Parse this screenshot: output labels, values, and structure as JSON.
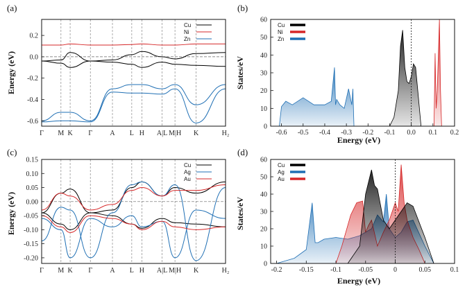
{
  "colors": {
    "cu": "#000000",
    "red": "#d62728",
    "blue": "#1f6fb4"
  },
  "chart_data": [
    {
      "type": "line",
      "panel": "(a)",
      "ylabel": "Energy (eV)",
      "ylim": [
        -0.65,
        0.35
      ],
      "yticks": [
        0.2,
        0.0,
        -0.2,
        -0.4,
        -0.6
      ],
      "ytick_labels": [
        "0.2",
        "0.0",
        "-0.2",
        "-0.4",
        "-0.6"
      ],
      "kpoints": [
        "Γ",
        "M",
        "K",
        "Γ",
        "A",
        "L",
        "H",
        "A|L",
        "M|H",
        "K",
        "H₂"
      ],
      "kpos": [
        0,
        0.105,
        0.155,
        0.265,
        0.385,
        0.49,
        0.545,
        0.655,
        0.725,
        0.84,
        1.0
      ],
      "legend": [
        "Cu",
        "Ni",
        "Zn"
      ],
      "series": [
        {
          "name": "Cu",
          "color": "cu",
          "x": [
            0,
            0.105,
            0.155,
            0.265,
            0.385,
            0.49,
            0.545,
            0.655,
            0.725,
            0.84,
            1.0
          ],
          "values": [
            -0.04,
            -0.03,
            0.04,
            -0.04,
            -0.03,
            0.02,
            0.05,
            0.0,
            -0.02,
            0.03,
            0.04
          ]
        },
        {
          "name": "Cu",
          "color": "cu",
          "x": [
            0,
            0.105,
            0.155,
            0.265,
            0.385,
            0.49,
            0.545,
            0.655,
            0.725,
            0.84,
            1.0
          ],
          "values": [
            -0.04,
            -0.06,
            -0.1,
            -0.04,
            -0.05,
            -0.07,
            -0.1,
            -0.05,
            -0.07,
            -0.08,
            -0.09
          ]
        },
        {
          "name": "Ni",
          "color": "red",
          "x": [
            0,
            0.105,
            0.155,
            0.265,
            0.385,
            0.49,
            0.545,
            0.655,
            0.725,
            0.84,
            1.0
          ],
          "values": [
            0.11,
            0.11,
            0.12,
            0.11,
            0.11,
            0.115,
            0.12,
            0.11,
            0.11,
            0.12,
            0.12
          ]
        },
        {
          "name": "Zn",
          "color": "blue",
          "x": [
            0,
            0.105,
            0.155,
            0.265,
            0.385,
            0.49,
            0.545,
            0.655,
            0.725,
            0.84,
            1.0
          ],
          "values": [
            -0.6,
            -0.52,
            -0.52,
            -0.6,
            -0.3,
            -0.26,
            -0.26,
            -0.3,
            -0.26,
            -0.45,
            -0.26
          ]
        },
        {
          "name": "Zn",
          "color": "blue",
          "x": [
            0,
            0.105,
            0.155,
            0.265,
            0.385,
            0.49,
            0.545,
            0.655,
            0.725,
            0.84,
            1.0
          ],
          "values": [
            -0.61,
            -0.6,
            -0.6,
            -0.61,
            -0.33,
            -0.34,
            -0.34,
            -0.35,
            -0.3,
            -0.62,
            -0.3
          ]
        }
      ]
    },
    {
      "type": "area",
      "panel": "(b)",
      "xlabel": "Energy (eV)",
      "ylabel": "States/eV",
      "xlim": [
        -0.65,
        0.2
      ],
      "ylim": [
        0,
        60
      ],
      "xticks": [
        -0.6,
        -0.5,
        -0.4,
        -0.3,
        -0.2,
        -0.1,
        0.0,
        0.1,
        0.2
      ],
      "xtick_labels": [
        "-0.6",
        "-0.5",
        "-0.4",
        "-0.3",
        "-0.2",
        "-0.1",
        "0.0",
        "0.1",
        "0.2"
      ],
      "yticks": [
        0,
        10,
        20,
        30,
        40,
        50,
        60
      ],
      "ytick_labels": [
        "0",
        "10",
        "20",
        "30",
        "40",
        "50",
        "60"
      ],
      "legend": [
        "Cu",
        "Ni",
        "Zn"
      ],
      "series": [
        {
          "name": "Zn",
          "color": "blue",
          "x": [
            -0.61,
            -0.6,
            -0.58,
            -0.55,
            -0.5,
            -0.45,
            -0.4,
            -0.37,
            -0.355,
            -0.35,
            -0.345,
            -0.33,
            -0.31,
            -0.29,
            -0.275,
            -0.27,
            -0.265
          ],
          "values": [
            0,
            11,
            14,
            12,
            16,
            12,
            12,
            14,
            33,
            12,
            15,
            12,
            10,
            21,
            12,
            21,
            0
          ]
        },
        {
          "name": "Cu",
          "color": "cu",
          "x": [
            -0.1,
            -0.08,
            -0.06,
            -0.05,
            -0.04,
            -0.03,
            -0.02,
            -0.01,
            0.0,
            0.01,
            0.02,
            0.03,
            0.045
          ],
          "values": [
            0,
            5,
            20,
            45,
            54,
            33,
            25,
            24,
            28,
            35,
            33,
            20,
            0
          ]
        },
        {
          "name": "Ni",
          "color": "red",
          "x": [
            0.105,
            0.11,
            0.115,
            0.12,
            0.125,
            0.13,
            0.135,
            0.14
          ],
          "values": [
            0,
            41,
            10,
            20,
            40,
            60,
            20,
            0
          ]
        }
      ]
    },
    {
      "type": "line",
      "panel": "(c)",
      "ylabel": "Energy (eV)",
      "ylim": [
        -0.22,
        0.15
      ],
      "yticks": [
        0.15,
        0.1,
        0.05,
        0.0,
        -0.05,
        -0.1,
        -0.15,
        -0.2
      ],
      "ytick_labels": [
        "0.15",
        "0.10",
        "0.05",
        "0.00",
        "-0.05",
        "-0.10",
        "-0.15",
        "-0.20"
      ],
      "kpoints": [
        "Γ",
        "M",
        "K",
        "Γ",
        "A",
        "L",
        "H",
        "A|L",
        "M|H",
        "K",
        "H₂"
      ],
      "kpos": [
        0,
        0.105,
        0.155,
        0.265,
        0.385,
        0.49,
        0.545,
        0.655,
        0.725,
        0.84,
        1.0
      ],
      "legend": [
        "Cu",
        "Ag",
        "Au"
      ],
      "series": [
        {
          "name": "Cu",
          "color": "cu",
          "x": [
            0,
            0.105,
            0.155,
            0.265,
            0.385,
            0.49,
            0.545,
            0.655,
            0.725,
            0.84,
            1.0
          ],
          "values": [
            -0.04,
            0.03,
            0.045,
            -0.04,
            -0.03,
            0.05,
            0.07,
            0.02,
            0.05,
            0.03,
            0.07
          ]
        },
        {
          "name": "Cu",
          "color": "cu",
          "x": [
            0,
            0.105,
            0.155,
            0.265,
            0.385,
            0.49,
            0.545,
            0.655,
            0.725,
            0.84,
            1.0
          ],
          "values": [
            -0.04,
            -0.08,
            -0.1,
            -0.04,
            -0.05,
            -0.08,
            -0.095,
            -0.06,
            -0.075,
            -0.08,
            -0.09
          ]
        },
        {
          "name": "Ag",
          "color": "blue",
          "x": [
            0,
            0.105,
            0.155,
            0.265,
            0.385,
            0.49,
            0.545,
            0.655,
            0.725,
            0.84,
            1.0
          ],
          "values": [
            -0.14,
            -0.02,
            -0.03,
            -0.2,
            -0.04,
            0.06,
            0.07,
            0.02,
            0.06,
            -0.21,
            0.05
          ]
        },
        {
          "name": "Ag",
          "color": "blue",
          "x": [
            0,
            0.105,
            0.155,
            0.265,
            0.385,
            0.49,
            0.545,
            0.655,
            0.725,
            0.84,
            1.0
          ],
          "values": [
            -0.06,
            -0.1,
            -0.2,
            -0.06,
            -0.09,
            -0.05,
            -0.09,
            -0.07,
            -0.2,
            -0.03,
            -0.06
          ]
        },
        {
          "name": "Au",
          "color": "red",
          "x": [
            0,
            0.105,
            0.155,
            0.265,
            0.385,
            0.49,
            0.545,
            0.655,
            0.725,
            0.84,
            1.0
          ],
          "values": [
            -0.03,
            0.03,
            0.02,
            -0.03,
            -0.01,
            0.04,
            0.05,
            0.02,
            0.04,
            0.04,
            0.06
          ]
        },
        {
          "name": "Au",
          "color": "red",
          "x": [
            0,
            0.105,
            0.155,
            0.265,
            0.385,
            0.49,
            0.545,
            0.655,
            0.725,
            0.84,
            1.0
          ],
          "values": [
            -0.05,
            -0.09,
            -0.11,
            -0.05,
            -0.06,
            -0.08,
            -0.1,
            -0.07,
            -0.09,
            -0.1,
            -0.09
          ]
        }
      ]
    },
    {
      "type": "area",
      "panel": "(d)",
      "xlabel": "Energy (eV)",
      "ylabel": "States/eV",
      "xlim": [
        -0.21,
        0.1
      ],
      "ylim": [
        0,
        60
      ],
      "xticks": [
        -0.2,
        -0.15,
        -0.1,
        -0.05,
        0.0,
        0.05,
        0.1
      ],
      "xtick_labels": [
        "-0.2",
        "-0.15",
        "-0.1",
        "-0.05",
        "0",
        "0.05",
        "0.1"
      ],
      "yticks": [
        0,
        10,
        20,
        30,
        40,
        50,
        60
      ],
      "ytick_labels": [
        "0",
        "10",
        "20",
        "30",
        "40",
        "50",
        "60"
      ],
      "legend": [
        "Cu",
        "Ag",
        "Au"
      ],
      "series": [
        {
          "name": "Ag",
          "color": "blue",
          "x": [
            -0.2,
            -0.17,
            -0.15,
            -0.14,
            -0.135,
            -0.13,
            -0.12,
            -0.1,
            -0.08,
            -0.06,
            -0.04,
            -0.03,
            -0.02,
            -0.015,
            -0.01,
            0.0,
            0.01,
            0.02,
            0.03,
            0.05,
            0.065
          ],
          "values": [
            0,
            3,
            8,
            35,
            12,
            12,
            14,
            15,
            14,
            16,
            20,
            28,
            24,
            40,
            20,
            15,
            18,
            24,
            25,
            10,
            0
          ]
        },
        {
          "name": "Au",
          "color": "red",
          "x": [
            -0.1,
            -0.09,
            -0.075,
            -0.065,
            -0.055,
            -0.05,
            -0.045,
            -0.04,
            -0.03,
            -0.02,
            -0.01,
            0.0,
            0.005,
            0.01,
            0.015,
            0.02,
            0.03,
            0.04,
            0.05
          ],
          "values": [
            0,
            10,
            28,
            35,
            36,
            18,
            22,
            25,
            10,
            18,
            25,
            35,
            30,
            57,
            35,
            25,
            15,
            8,
            0
          ]
        },
        {
          "name": "Cu",
          "color": "cu",
          "x": [
            -0.08,
            -0.06,
            -0.05,
            -0.04,
            -0.035,
            -0.03,
            -0.02,
            -0.01,
            0.0,
            0.01,
            0.02,
            0.03,
            0.05,
            0.065
          ],
          "values": [
            0,
            10,
            40,
            54,
            45,
            43,
            25,
            20,
            25,
            30,
            35,
            33,
            15,
            0
          ]
        }
      ]
    }
  ]
}
